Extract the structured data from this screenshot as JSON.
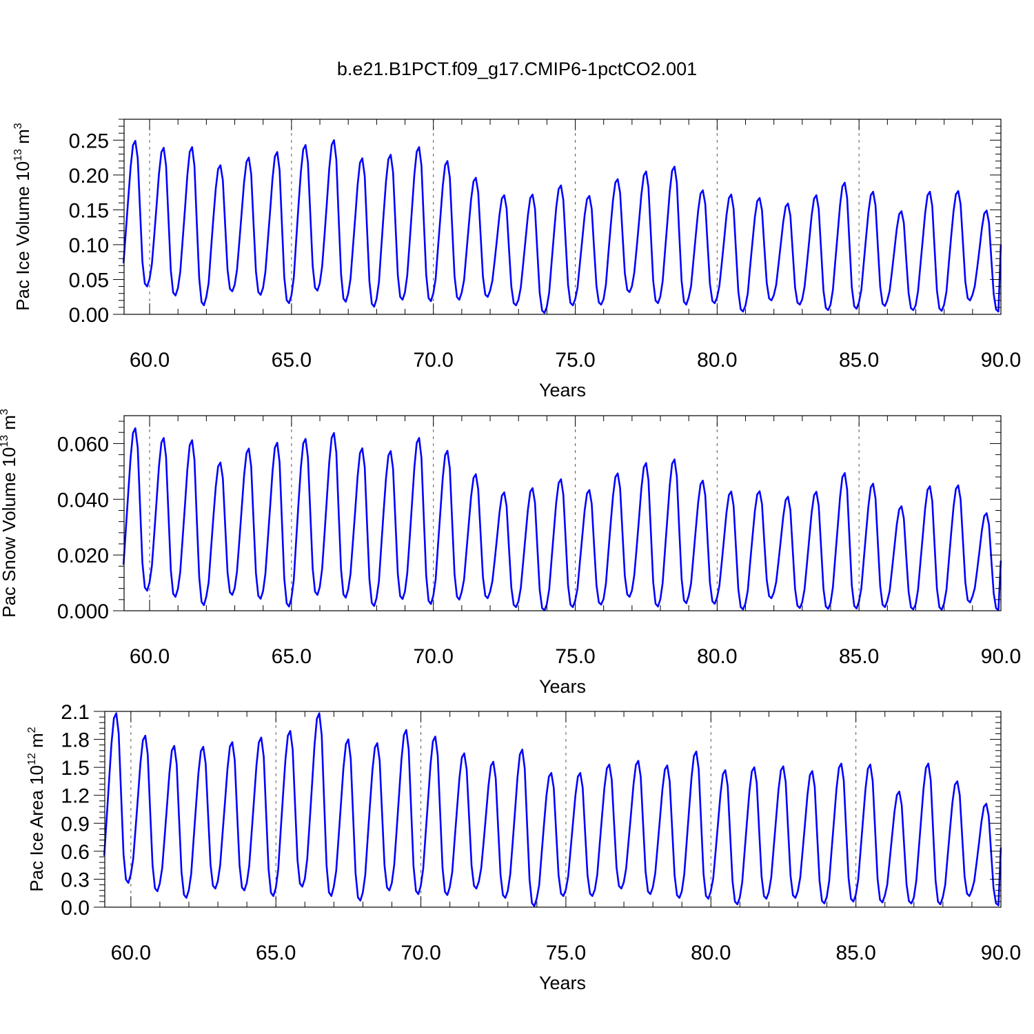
{
  "title": "b.e21.B1PCT.f09_g17.CMIP6-1pctCO2.001",
  "colors": {
    "series": "#0000ff",
    "axis": "#000000",
    "grid": "#555555"
  },
  "chart_data": [
    {
      "type": "line",
      "name": "ice-volume",
      "xlabel": "Years",
      "ylabel_main": "Pac Ice Volume 10",
      "ylabel_sup": "13",
      "ylabel_unit": " m",
      "ylabel_unit_sup": "3",
      "xlim": [
        59.1,
        90.0
      ],
      "ylim": [
        0,
        0.28
      ],
      "xticks": [
        60,
        65,
        70,
        75,
        80,
        85,
        90
      ],
      "xtick_labels": [
        "60.0",
        "65.0",
        "70.0",
        "75.0",
        "80.0",
        "85.0",
        "90.0"
      ],
      "yticks": [
        0,
        0.05,
        0.1,
        0.15,
        0.2,
        0.25
      ],
      "ytick_labels": [
        "0.00",
        "0.05",
        "0.10",
        "0.15",
        "0.20",
        "0.25"
      ],
      "grid": "x-dashed",
      "start_year": 59.08,
      "annual_peak": [
        0.249,
        0.239,
        0.24,
        0.214,
        0.225,
        0.233,
        0.243,
        0.25,
        0.224,
        0.229,
        0.24,
        0.22,
        0.196,
        0.171,
        0.172,
        0.185,
        0.17,
        0.194,
        0.205,
        0.212,
        0.178,
        0.172,
        0.167,
        0.159,
        0.171,
        0.189,
        0.176,
        0.148,
        0.176,
        0.177,
        0.149
      ],
      "annual_min": [
        0.04,
        0.027,
        0.013,
        0.033,
        0.028,
        0.016,
        0.034,
        0.018,
        0.011,
        0.021,
        0.019,
        0.021,
        0.025,
        0.013,
        0.002,
        0.013,
        0.014,
        0.032,
        0.016,
        0.014,
        0.016,
        0.004,
        0.02,
        0.014,
        0.006,
        0.008,
        0.012,
        0.006,
        0.005,
        0.02,
        0.004
      ],
      "last_value": 0.1
    },
    {
      "type": "line",
      "name": "snow-volume",
      "xlabel": "Years",
      "ylabel_main": "Pac Snow Volume 10",
      "ylabel_sup": "13",
      "ylabel_unit": " m",
      "ylabel_unit_sup": "3",
      "xlim": [
        59.1,
        90.0
      ],
      "ylim": [
        0,
        0.07
      ],
      "xticks": [
        60,
        65,
        70,
        75,
        80,
        85,
        90
      ],
      "xtick_labels": [
        "60.0",
        "65.0",
        "70.0",
        "75.0",
        "80.0",
        "85.0",
        "90.0"
      ],
      "yticks": [
        0,
        0.02,
        0.04,
        0.06
      ],
      "ytick_labels": [
        "0.000",
        "0.020",
        "0.040",
        "0.060"
      ],
      "grid": "x-dashed",
      "start_year": 59.08,
      "annual_peak": [
        0.0655,
        0.062,
        0.0612,
        0.0532,
        0.0582,
        0.0603,
        0.0617,
        0.0638,
        0.0583,
        0.0573,
        0.062,
        0.0574,
        0.049,
        0.0425,
        0.044,
        0.0472,
        0.0433,
        0.0493,
        0.053,
        0.0543,
        0.0467,
        0.0428,
        0.0429,
        0.0409,
        0.0427,
        0.0494,
        0.0456,
        0.0375,
        0.0447,
        0.045,
        0.035
      ],
      "annual_min": [
        0.0072,
        0.005,
        0.002,
        0.0057,
        0.0043,
        0.0015,
        0.0057,
        0.0047,
        0.0017,
        0.0042,
        0.0024,
        0.004,
        0.0045,
        0.0013,
        0.0001,
        0.0013,
        0.0022,
        0.005,
        0.0015,
        0.0027,
        0.0025,
        0.0005,
        0.0045,
        0.001,
        0.0007,
        0.0008,
        0.0013,
        0.0005,
        0.0004,
        0.003,
        0.0002
      ],
      "last_value": 0.018
    },
    {
      "type": "line",
      "name": "ice-area",
      "xlabel": "Years",
      "ylabel_main": "Pac Ice Area 10",
      "ylabel_sup": "12",
      "ylabel_unit": " m",
      "ylabel_unit_sup": "2",
      "xlim": [
        59.1,
        90.0
      ],
      "ylim": [
        0,
        2.1
      ],
      "xticks": [
        60,
        65,
        70,
        75,
        80,
        85,
        90
      ],
      "xtick_labels": [
        "60.0",
        "65.0",
        "70.0",
        "75.0",
        "80.0",
        "85.0",
        "90.0"
      ],
      "yticks": [
        0,
        0.3,
        0.6,
        0.9,
        1.2,
        1.5,
        1.8,
        2.1
      ],
      "ytick_labels": [
        "0.0",
        "0.3",
        "0.6",
        "0.9",
        "1.2",
        "1.5",
        "1.8",
        "2.1"
      ],
      "grid": "x-dashed",
      "start_year": 59.08,
      "annual_peak": [
        2.08,
        1.84,
        1.73,
        1.72,
        1.77,
        1.82,
        1.89,
        2.08,
        1.8,
        1.76,
        1.9,
        1.83,
        1.65,
        1.56,
        1.69,
        1.44,
        1.44,
        1.53,
        1.57,
        1.52,
        1.67,
        1.47,
        1.5,
        1.51,
        1.46,
        1.54,
        1.53,
        1.24,
        1.54,
        1.35,
        1.11
      ],
      "annual_min": [
        0.26,
        0.17,
        0.1,
        0.2,
        0.18,
        0.12,
        0.22,
        0.12,
        0.07,
        0.18,
        0.14,
        0.13,
        0.2,
        0.1,
        0.01,
        0.12,
        0.12,
        0.2,
        0.14,
        0.1,
        0.09,
        0.03,
        0.09,
        0.1,
        0.04,
        0.06,
        0.05,
        0.04,
        0.03,
        0.12,
        0.02
      ],
      "last_value": 0.64
    }
  ]
}
